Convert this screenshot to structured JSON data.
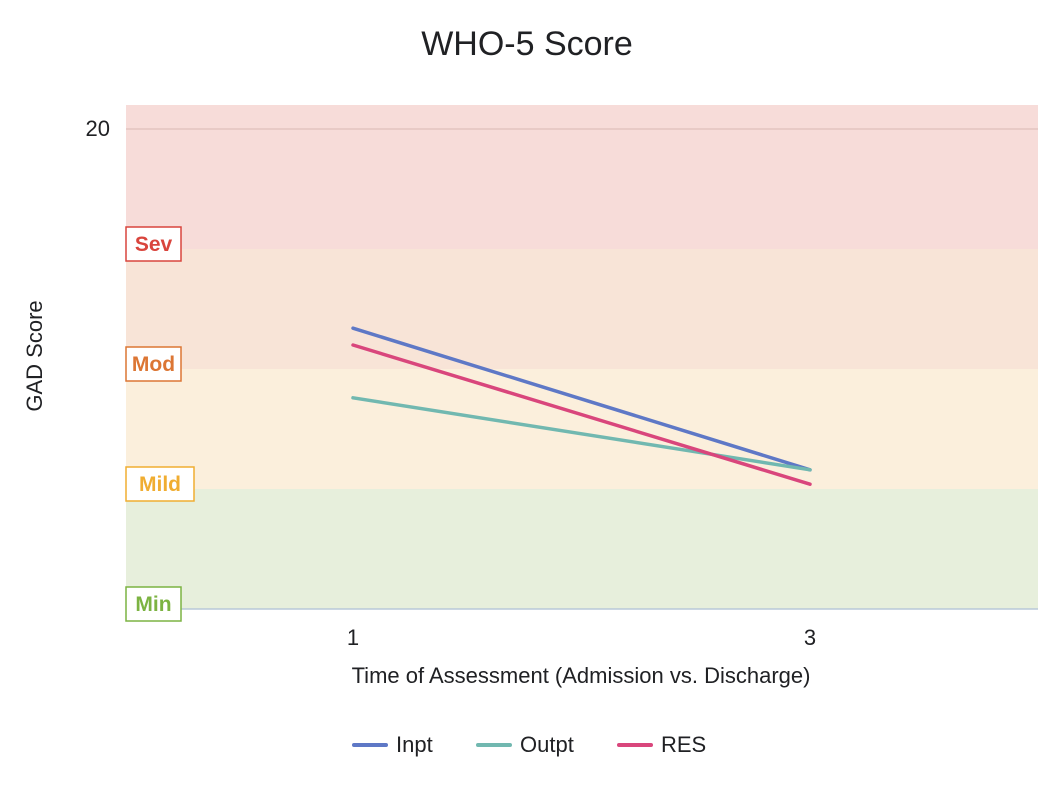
{
  "chart_data": {
    "type": "line",
    "title": "WHO-5 Score",
    "xlabel": "Time of Assessment (Admission vs. Discharge)",
    "ylabel": "GAD Score",
    "x": [
      "1",
      "3"
    ],
    "ylim": [
      0,
      20
    ],
    "y_ticks": [
      "20"
    ],
    "series": [
      {
        "name": "Inpt",
        "values": [
          11.7,
          5.8
        ],
        "color": "#5e78c6"
      },
      {
        "name": "Outpt",
        "values": [
          8.8,
          5.8
        ],
        "color": "#71b8b0"
      },
      {
        "name": "RES",
        "values": [
          11.0,
          5.2
        ],
        "color": "#d9467c"
      }
    ],
    "bands": [
      {
        "label": "Min",
        "from": 0,
        "to": 5,
        "fill": "#e7efdc",
        "color": "#7cb342"
      },
      {
        "label": "Mild",
        "from": 5,
        "to": 10,
        "fill": "#fbefdc",
        "color": "#f0ad31"
      },
      {
        "label": "Mod",
        "from": 10,
        "to": 15,
        "fill": "#f8e4d7",
        "color": "#dc7634"
      },
      {
        "label": "Sev",
        "from": 15,
        "to": 21,
        "fill": "#f7dcd9",
        "color": "#d9453d"
      }
    ],
    "legend_position": "bottom",
    "grid": true
  }
}
